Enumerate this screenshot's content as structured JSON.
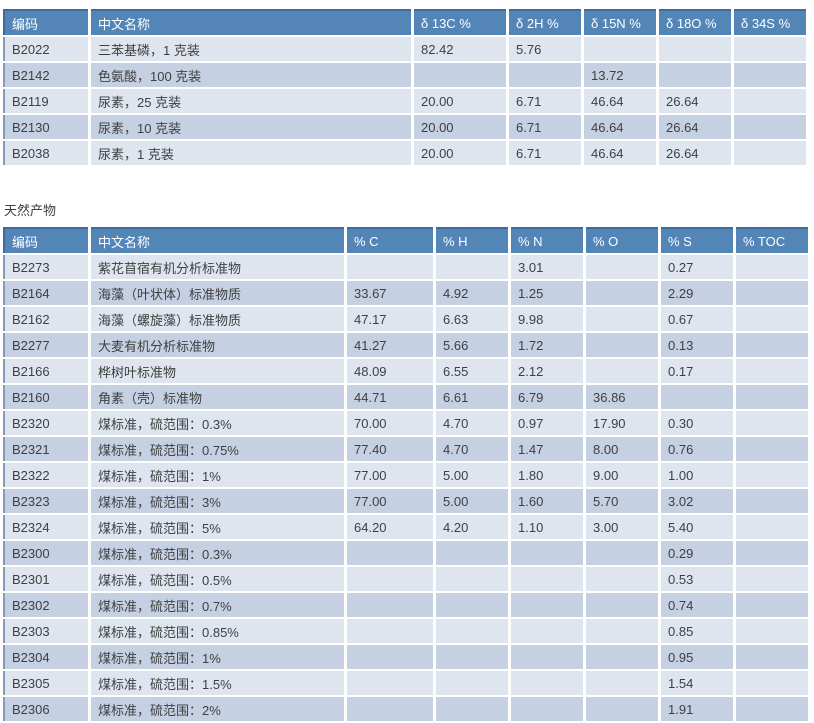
{
  "section_title": "天然产物",
  "colors": {
    "header_bg": "#5385b7",
    "header_border": "#3c6b9d",
    "row_light": "#dfe5ef",
    "row_dark": "#c6d0e3",
    "text": "#3f3f3f",
    "header_text": "#ffffff"
  },
  "table1": {
    "headers": [
      "编码",
      "中文名称",
      "δ 13C %",
      "δ 2H %",
      "δ 15N %",
      "δ 18O %",
      "δ 34S %"
    ],
    "rows": [
      [
        "B2022",
        "三苯基磷，1 克装",
        "82.42",
        "5.76",
        "",
        "",
        ""
      ],
      [
        "B2142",
        "色氨酸，100 克装",
        "",
        "",
        "13.72",
        "",
        ""
      ],
      [
        "B2119",
        "尿素，25 克装",
        "20.00",
        "6.71",
        "46.64",
        "26.64",
        ""
      ],
      [
        "B2130",
        "尿素，10 克装",
        "20.00",
        "6.71",
        "46.64",
        "26.64",
        ""
      ],
      [
        "B2038",
        "尿素，1 克装",
        "20.00",
        "6.71",
        "46.64",
        "26.64",
        ""
      ]
    ]
  },
  "table2": {
    "headers": [
      "编码",
      "中文名称",
      "% C",
      "% H",
      "% N",
      "% O",
      "% S",
      "% TOC"
    ],
    "rows": [
      [
        "B2273",
        "紫花苜宿有机分析标准物",
        "",
        "",
        "3.01",
        "",
        "0.27",
        ""
      ],
      [
        "B2164",
        "海藻（叶状体）标准物质",
        "33.67",
        "4.92",
        "1.25",
        "",
        "2.29",
        ""
      ],
      [
        "B2162",
        "海藻（螺旋藻）标准物质",
        "47.17",
        "6.63",
        "9.98",
        "",
        "0.67",
        ""
      ],
      [
        "B2277",
        "大麦有机分析标准物",
        "41.27",
        "5.66",
        "1.72",
        "",
        "0.13",
        ""
      ],
      [
        "B2166",
        "桦树叶标准物",
        "48.09",
        "6.55",
        "2.12",
        "",
        "0.17",
        ""
      ],
      [
        "B2160",
        "角素（壳）标准物",
        "44.71",
        "6.61",
        "6.79",
        "36.86",
        "",
        ""
      ],
      [
        "B2320",
        "煤标准，硫范围：0.3%",
        "70.00",
        "4.70",
        "0.97",
        "17.90",
        "0.30",
        ""
      ],
      [
        "B2321",
        "煤标准，硫范围：0.75%",
        "77.40",
        "4.70",
        "1.47",
        "8.00",
        "0.76",
        ""
      ],
      [
        "B2322",
        "煤标准，硫范围：1%",
        "77.00",
        "5.00",
        "1.80",
        "9.00",
        "1.00",
        ""
      ],
      [
        "B2323",
        "煤标准，硫范围：3%",
        "77.00",
        "5.00",
        "1.60",
        "5.70",
        "3.02",
        ""
      ],
      [
        "B2324",
        "煤标准，硫范围：5%",
        "64.20",
        "4.20",
        "1.10",
        "3.00",
        "5.40",
        ""
      ],
      [
        "B2300",
        "煤标准，硫范围：0.3%",
        "",
        "",
        "",
        "",
        "0.29",
        ""
      ],
      [
        "B2301",
        "煤标准，硫范围：0.5%",
        "",
        "",
        "",
        "",
        "0.53",
        ""
      ],
      [
        "B2302",
        "煤标准，硫范围：0.7%",
        "",
        "",
        "",
        "",
        "0.74",
        ""
      ],
      [
        "B2303",
        "煤标准，硫范围：0.85%",
        "",
        "",
        "",
        "",
        "0.85",
        ""
      ],
      [
        "B2304",
        "煤标准，硫范围：1%",
        "",
        "",
        "",
        "",
        "0.95",
        ""
      ],
      [
        "B2305",
        "煤标准，硫范围：1.5%",
        "",
        "",
        "",
        "",
        "1.54",
        ""
      ],
      [
        "B2306",
        "煤标准，硫范围：2%",
        "",
        "",
        "",
        "",
        "1.91",
        ""
      ]
    ]
  }
}
